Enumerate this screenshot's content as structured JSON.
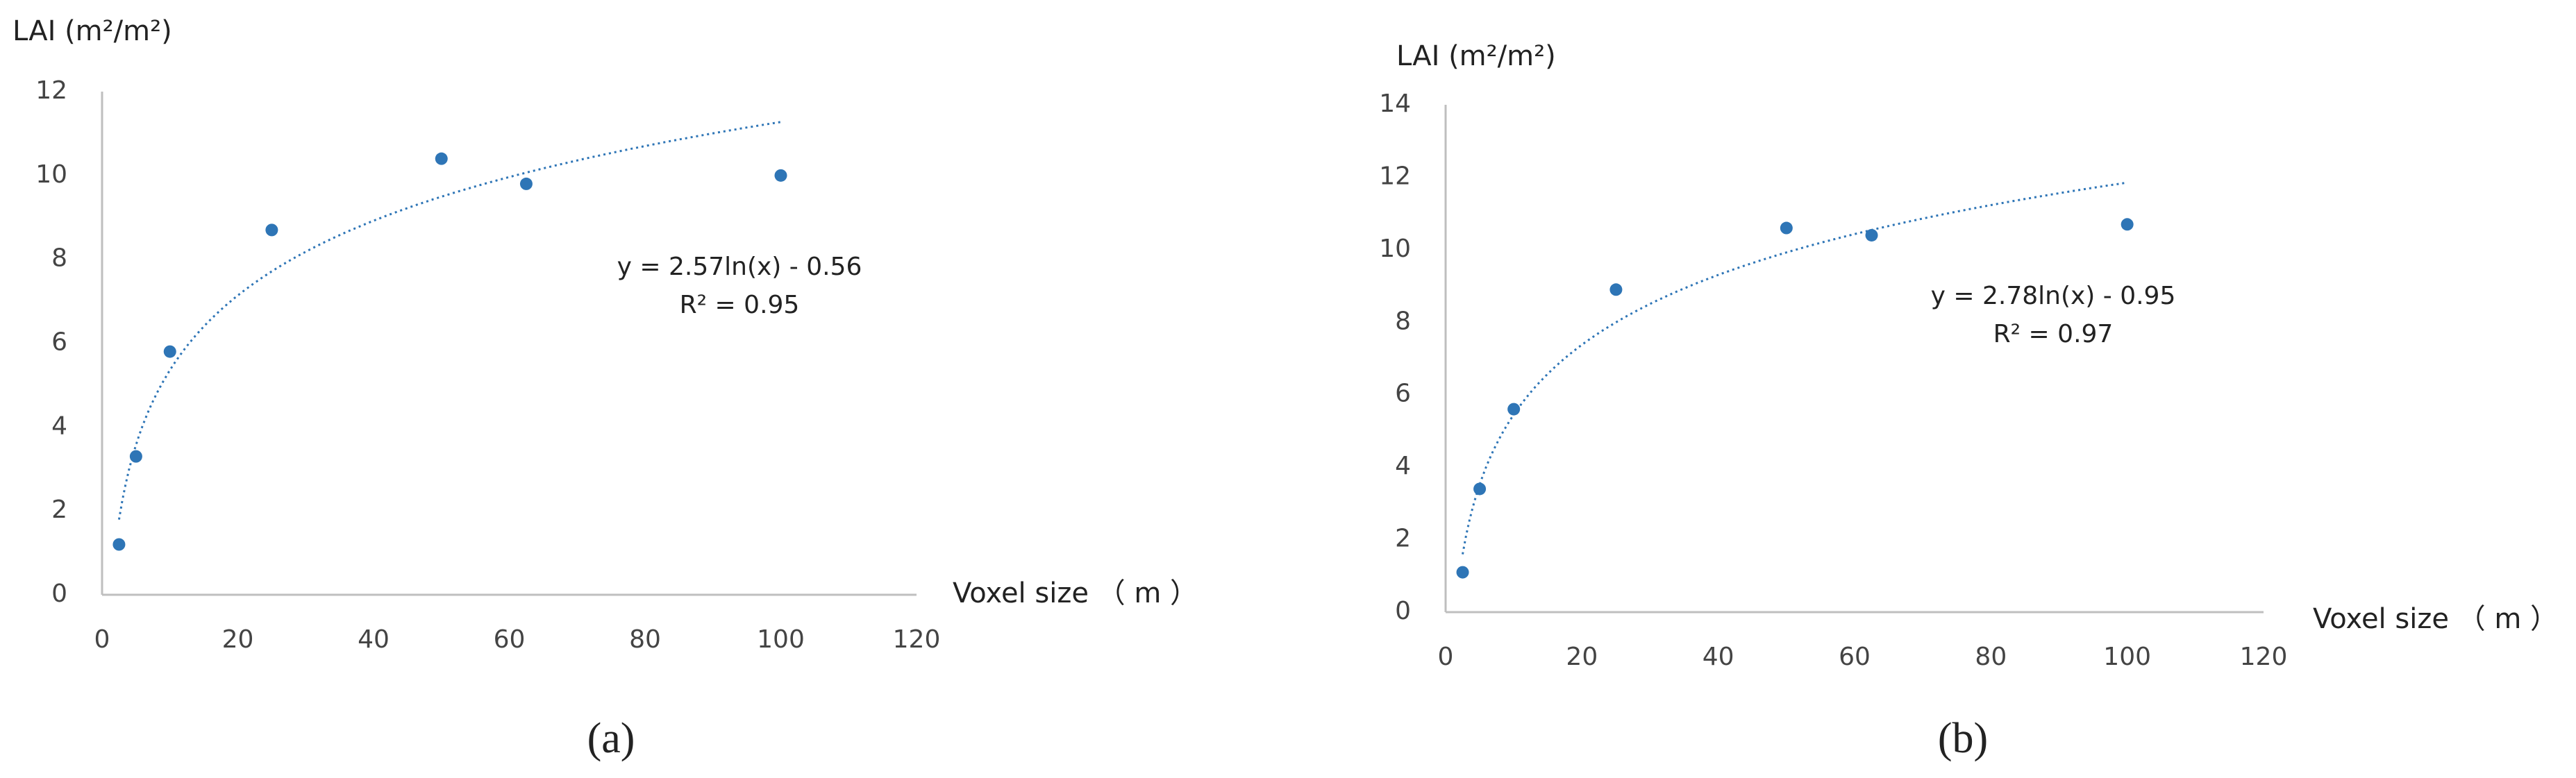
{
  "chart_data": [
    {
      "type": "scatter",
      "y_label": "LAI (m²/m²)",
      "x_label": "Voxel size （ m ）",
      "caption": "(a)",
      "x": [
        2.5,
        5,
        10,
        25,
        50,
        62.5,
        100
      ],
      "series": [
        {
          "color": "#2e75b6",
          "values": [
            1.2,
            3.3,
            5.8,
            8.7,
            10.4,
            9.8,
            10.0
          ]
        }
      ],
      "xlim": [
        0,
        120
      ],
      "xticks": [
        0,
        20,
        40,
        60,
        80,
        100,
        120
      ],
      "ylim": [
        0,
        12
      ],
      "yticks": [
        0,
        2,
        4,
        6,
        8,
        10,
        12
      ],
      "trendline": {
        "type": "log",
        "a": 2.57,
        "b": -0.56,
        "equation": "y = 2.57ln(x) - 0.56",
        "r2_label": "R² = 0.95"
      }
    },
    {
      "type": "scatter",
      "y_label": "LAI (m²/m²)",
      "x_label": "Voxel size （ m ）",
      "caption": "(b)",
      "x": [
        2.5,
        5,
        10,
        25,
        50,
        62.5,
        100
      ],
      "series": [
        {
          "color": "#2e75b6",
          "values": [
            1.1,
            3.4,
            5.6,
            8.9,
            10.6,
            10.4,
            10.7
          ]
        }
      ],
      "xlim": [
        0,
        120
      ],
      "xticks": [
        0,
        20,
        40,
        60,
        80,
        100,
        120
      ],
      "ylim": [
        0,
        14
      ],
      "yticks": [
        0,
        2,
        4,
        6,
        8,
        10,
        12,
        14
      ],
      "trendline": {
        "type": "log",
        "a": 2.78,
        "b": -0.95,
        "equation": "y = 2.78ln(x) - 0.95",
        "r2_label": "R² = 0.97"
      }
    }
  ]
}
